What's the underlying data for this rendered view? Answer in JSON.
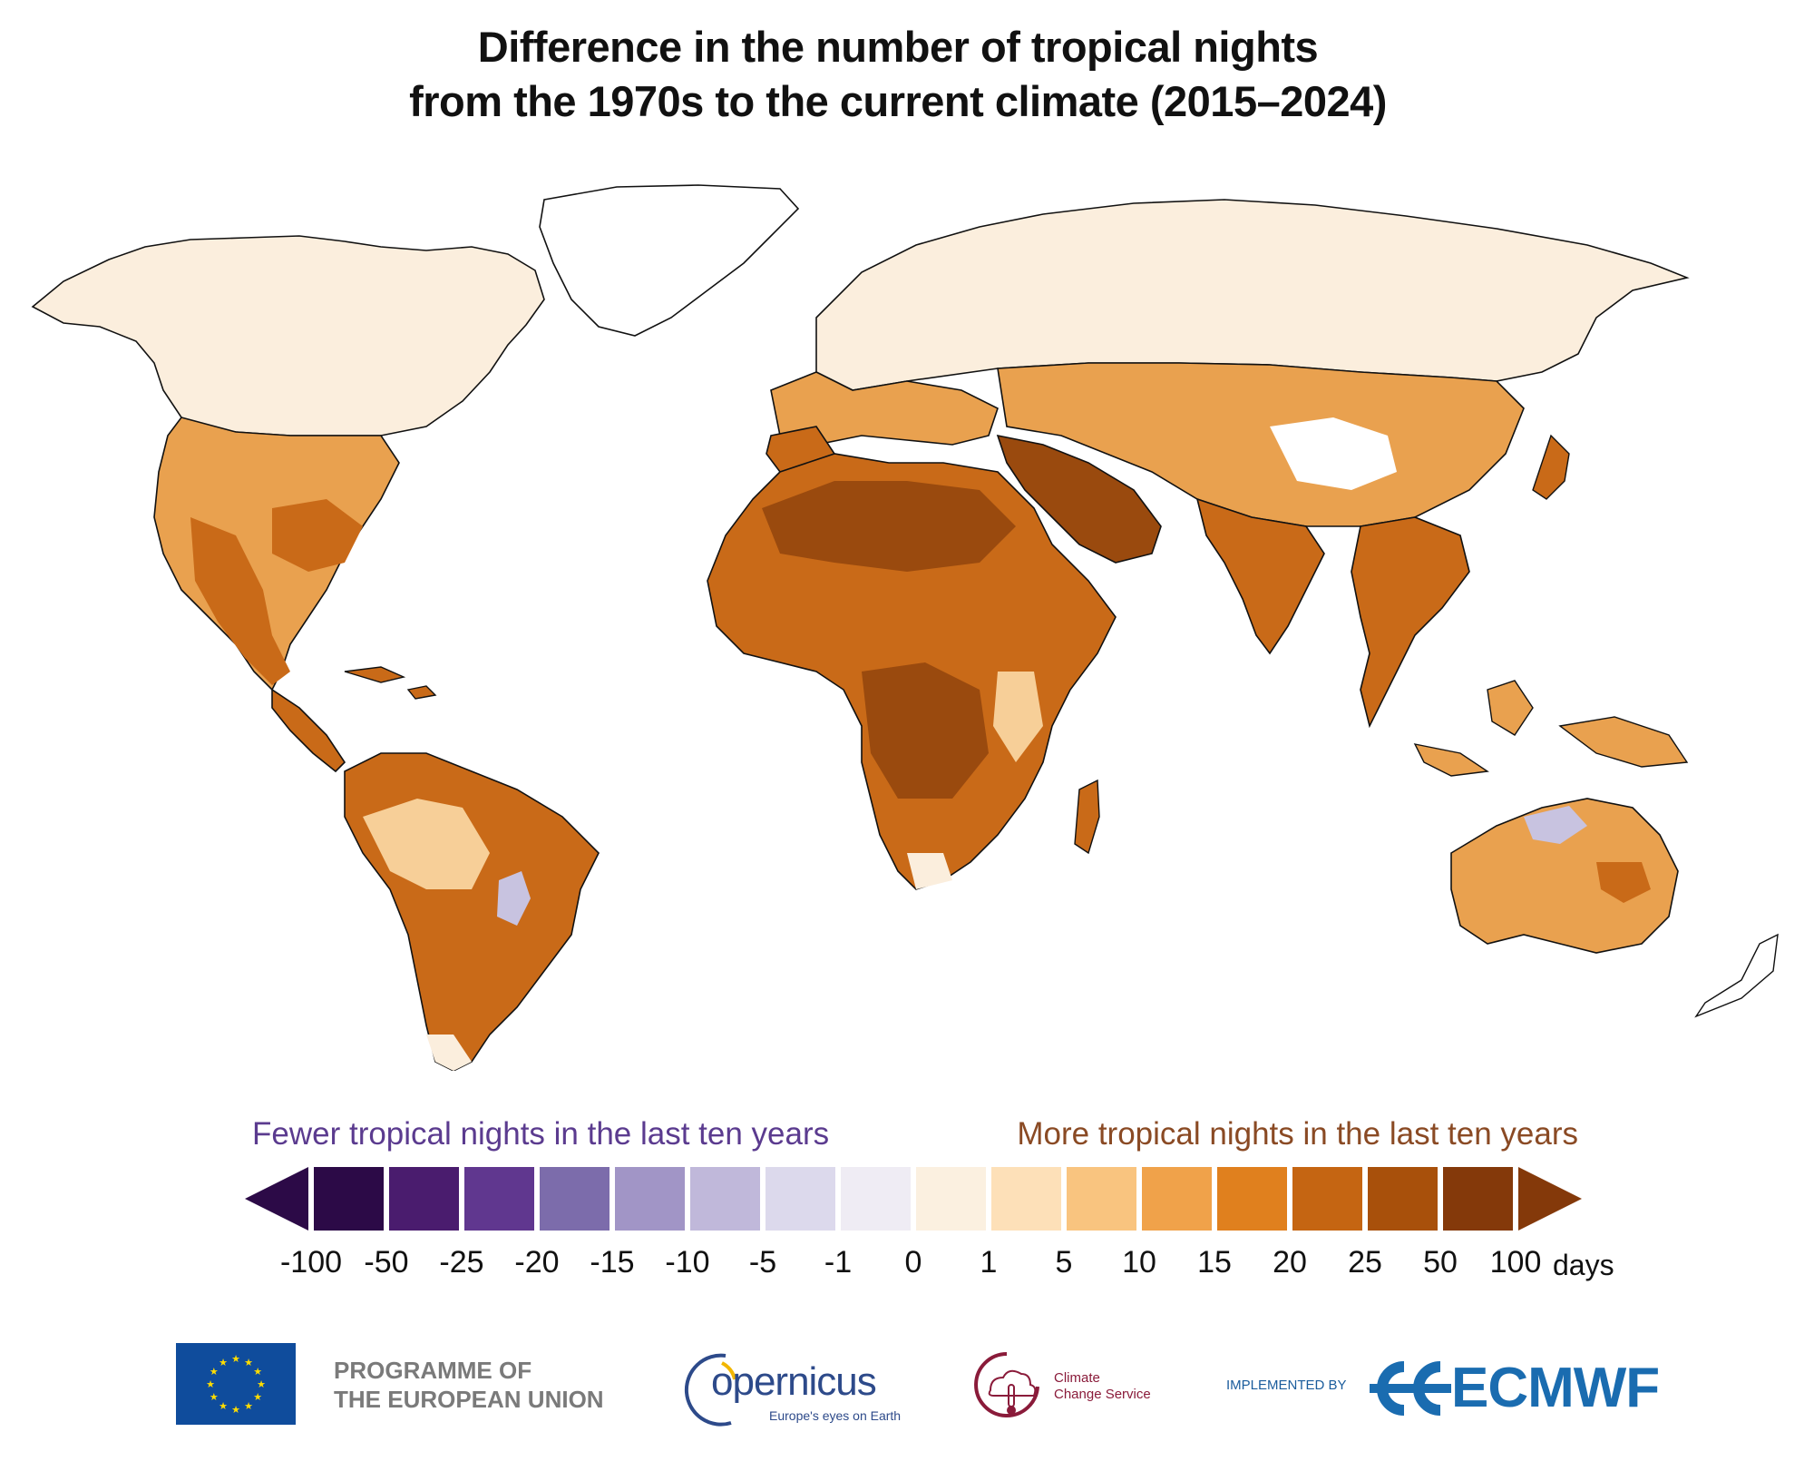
{
  "title": {
    "line1": "Difference in the number of tropical nights",
    "line2": "from the 1970s to the current climate (2015–2024)"
  },
  "legend": {
    "fewer_label": "Fewer tropical nights in the last ten years",
    "more_label": "More tropical nights in the last ten years",
    "unit": "days",
    "ticks": [
      "-100",
      "-50",
      "-25",
      "-20",
      "-15",
      "-10",
      "-5",
      "-1",
      "0",
      "1",
      "5",
      "10",
      "15",
      "20",
      "25",
      "50",
      "100"
    ],
    "colors": {
      "under": "#2c0a47",
      "bins": [
        "#2c0a47",
        "#4a1c6e",
        "#60378f",
        "#7c6cab",
        "#a195c6",
        "#c0b8da",
        "#dcd9ec",
        "#efecf4",
        "#fbf0e0",
        "#fde0b8",
        "#f9c47f",
        "#f0a24a",
        "#e0801e",
        "#c56512",
        "#a8500b",
        "#84390a"
      ],
      "over": "#84390a"
    }
  },
  "map": {
    "colors": {
      "ocean": "#ffffff",
      "coast": "#111111",
      "very_high": "#9a4a0e",
      "high": "#c96a18",
      "medium": "#e9a14f",
      "low": "#f7cf98",
      "faint": "#fbeedd",
      "negative": "#c8c3e0"
    }
  },
  "footer": {
    "eu_line1": "PROGRAMME OF",
    "eu_line2": "THE EUROPEAN UNION",
    "copernicus": "opernicus",
    "copernicus_tagline": "Europe's eyes on Earth",
    "c3s_line1": "Climate",
    "c3s_line2": "Change Service",
    "implemented_by": "IMPLEMENTED BY",
    "ecmwf": "ECMWF",
    "colors": {
      "eu_blue": "#0f4c9c",
      "eu_star": "#ffdd00",
      "copernicus": "#2d4a8a",
      "c3s": "#8a1b3a",
      "ecmwf": "#1a6cb0"
    }
  }
}
